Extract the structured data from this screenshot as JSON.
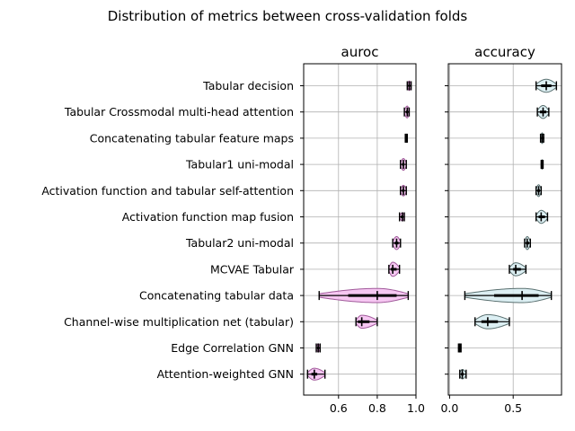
{
  "chart_data": {
    "type": "violin",
    "title": "Distribution of metrics between cross-validation folds",
    "categories": [
      "Tabular decision",
      "Tabular Crossmodal multi-head attention",
      "Concatenating tabular feature maps",
      "Tabular1 uni-modal",
      "Activation function and tabular self-attention",
      "Activation function map fusion",
      "Tabular2 uni-modal",
      "MCVAE Tabular",
      "Concatenating tabular data",
      "Channel-wise multiplication net (tabular)",
      "Edge Correlation GNN",
      "Attention-weighted GNN"
    ],
    "panels": [
      {
        "name": "auroc",
        "xlim": [
          0.42,
          1.0
        ],
        "xticks": [
          0.6,
          0.8,
          1.0
        ],
        "xtick_labels": [
          "0.6",
          "0.8",
          "1.0"
        ],
        "grid": true,
        "fill": "#f5bdf0",
        "edge": "#a05a9a",
        "violins": [
          {
            "min": 0.955,
            "q1": 0.96,
            "median": 0.965,
            "q3": 0.97,
            "max": 0.975,
            "width": 0.4
          },
          {
            "min": 0.94,
            "q1": 0.948,
            "median": 0.955,
            "q3": 0.96,
            "max": 0.965,
            "width": 0.5
          },
          {
            "min": 0.945,
            "q1": 0.948,
            "median": 0.95,
            "q3": 0.952,
            "max": 0.955,
            "width": 0.2
          },
          {
            "min": 0.92,
            "q1": 0.928,
            "median": 0.935,
            "q3": 0.94,
            "max": 0.95,
            "width": 0.5
          },
          {
            "min": 0.92,
            "q1": 0.928,
            "median": 0.935,
            "q3": 0.94,
            "max": 0.95,
            "width": 0.45
          },
          {
            "min": 0.915,
            "q1": 0.922,
            "median": 0.93,
            "q3": 0.935,
            "max": 0.94,
            "width": 0.35
          },
          {
            "min": 0.88,
            "q1": 0.89,
            "median": 0.9,
            "q3": 0.91,
            "max": 0.92,
            "width": 0.55
          },
          {
            "min": 0.86,
            "q1": 0.87,
            "median": 0.88,
            "q3": 0.9,
            "max": 0.915,
            "width": 0.6
          },
          {
            "min": 0.5,
            "q1": 0.65,
            "median": 0.8,
            "q3": 0.9,
            "max": 0.96,
            "width": 0.6
          },
          {
            "min": 0.69,
            "q1": 0.7,
            "median": 0.72,
            "q3": 0.76,
            "max": 0.8,
            "width": 0.55
          },
          {
            "min": 0.485,
            "q1": 0.49,
            "median": 0.495,
            "q3": 0.5,
            "max": 0.505,
            "width": 0.35
          },
          {
            "min": 0.44,
            "q1": 0.46,
            "median": 0.475,
            "q3": 0.49,
            "max": 0.53,
            "width": 0.5
          }
        ]
      },
      {
        "name": "accuracy",
        "xlim": [
          -0.01,
          0.88
        ],
        "xticks": [
          0.0,
          0.5
        ],
        "xtick_labels": [
          "0.0",
          "0.5"
        ],
        "grid": true,
        "fill": "#d6ecf1",
        "edge": "#5a7070",
        "violins": [
          {
            "min": 0.68,
            "q1": 0.72,
            "median": 0.76,
            "q3": 0.8,
            "max": 0.84,
            "width": 0.55
          },
          {
            "min": 0.69,
            "q1": 0.71,
            "median": 0.735,
            "q3": 0.76,
            "max": 0.78,
            "width": 0.55
          },
          {
            "min": 0.715,
            "q1": 0.72,
            "median": 0.728,
            "q3": 0.735,
            "max": 0.74,
            "width": 0.45
          },
          {
            "min": 0.72,
            "q1": 0.724,
            "median": 0.728,
            "q3": 0.732,
            "max": 0.735,
            "width": 0.4
          },
          {
            "min": 0.68,
            "q1": 0.69,
            "median": 0.7,
            "q3": 0.71,
            "max": 0.72,
            "width": 0.5
          },
          {
            "min": 0.68,
            "q1": 0.7,
            "median": 0.72,
            "q3": 0.75,
            "max": 0.77,
            "width": 0.55
          },
          {
            "min": 0.59,
            "q1": 0.6,
            "median": 0.61,
            "q3": 0.625,
            "max": 0.635,
            "width": 0.55
          },
          {
            "min": 0.47,
            "q1": 0.5,
            "median": 0.52,
            "q3": 0.56,
            "max": 0.6,
            "width": 0.55
          },
          {
            "min": 0.12,
            "q1": 0.35,
            "median": 0.57,
            "q3": 0.7,
            "max": 0.8,
            "width": 0.6
          },
          {
            "min": 0.2,
            "q1": 0.25,
            "median": 0.3,
            "q3": 0.38,
            "max": 0.47,
            "width": 0.6
          },
          {
            "min": 0.07,
            "q1": 0.075,
            "median": 0.08,
            "q3": 0.085,
            "max": 0.09,
            "width": 0.35
          },
          {
            "min": 0.08,
            "q1": 0.09,
            "median": 0.1,
            "q3": 0.11,
            "max": 0.13,
            "width": 0.4
          }
        ]
      }
    ]
  }
}
